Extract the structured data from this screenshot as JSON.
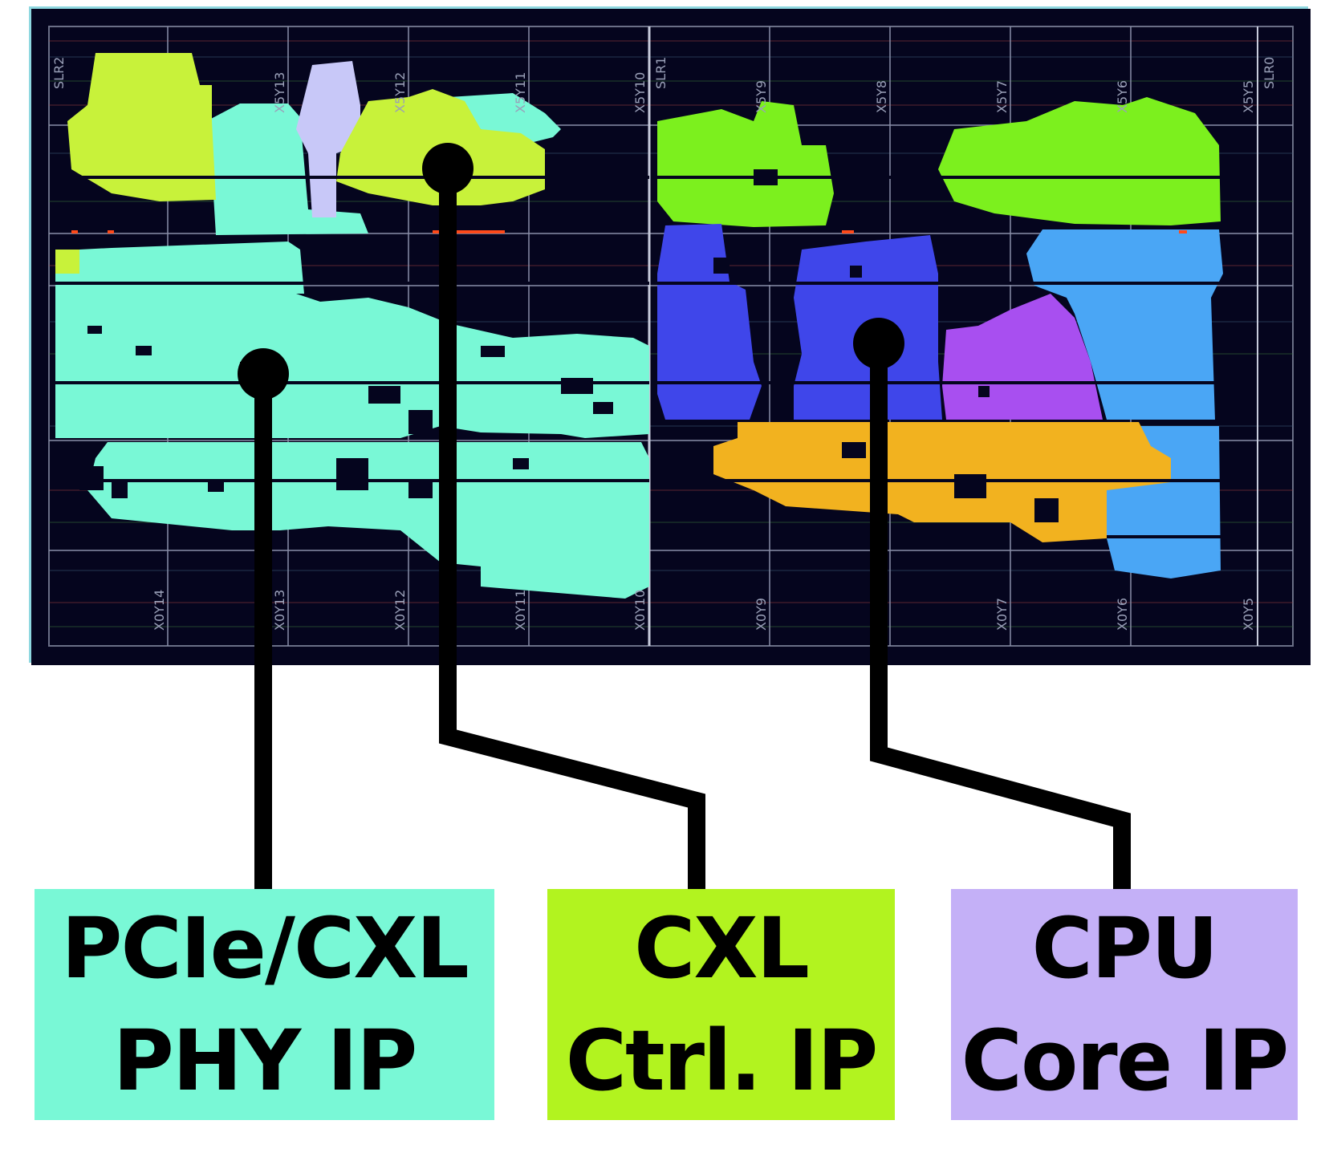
{
  "colors": {
    "phy": "#79f8d6",
    "ctrl": "#b2f31f",
    "cpu_label": "#c4b0f7",
    "green_block": "#7cf01e",
    "blue_block": "#3f46ea",
    "purple_block": "#a84ff0",
    "orange_block": "#f2b21f",
    "skyblue_block": "#4aa6f5",
    "lavender_block": "#c8c8f8",
    "background": "#05051e"
  },
  "region_tags": {
    "slr2": "SLR2",
    "slr1": "SLR1",
    "slr0": "SLR0",
    "x5y13": "X5Y13",
    "x5y12": "X5Y12",
    "x5y11": "X5Y11",
    "x5y10": "X5Y10",
    "x5y9": "X5Y9",
    "x5y8": "X5Y8",
    "x5y7": "X5Y7",
    "x5y6": "X5Y6",
    "x5y5": "X5Y5",
    "x0y14": "X0Y14",
    "x0y13": "X0Y13",
    "x0y12": "X0Y12",
    "x0y11": "X0Y11",
    "x0y10": "X0Y10",
    "x0y9": "X0Y9",
    "x0y7": "X0Y7",
    "x0y6": "X0Y6",
    "x0y5": "X0Y5"
  },
  "labels": {
    "phy": {
      "line1": "PCIe/CXL",
      "line2": "PHY IP"
    },
    "ctrl": {
      "line1": "CXL",
      "line2": "Ctrl. IP"
    },
    "cpu": {
      "line1": "CPU",
      "line2": "Core IP"
    }
  }
}
